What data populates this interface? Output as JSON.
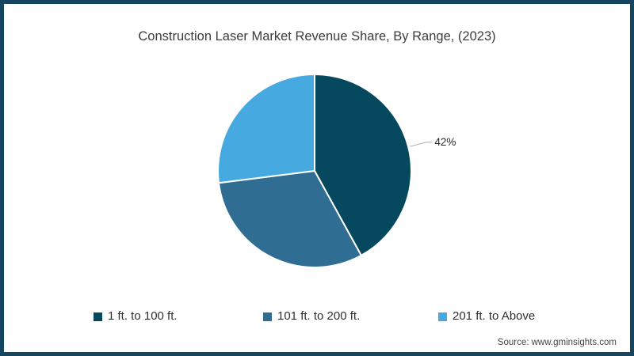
{
  "page": {
    "background": "#ffffff",
    "border_color": "#15455f"
  },
  "header": {
    "title": "Construction Laser Market Revenue Share, By Range, (2023)"
  },
  "chart_data": {
    "type": "pie",
    "title": "Construction Laser Market Revenue Share, By Range, (2023)",
    "unit": "%",
    "direction": "clockwise",
    "start_angle_deg": 0,
    "legend_position": "bottom",
    "separator_color": "#ffffff",
    "leader_line_color": "#a6a6a6",
    "data_label_color": "#262626",
    "slices": [
      {
        "label": "1 ft. to 100 ft.",
        "value": 42,
        "color": "#06495f",
        "data_label": "42%"
      },
      {
        "label": "101 ft. to 200 ft.",
        "value": 31,
        "color": "#2f6e92",
        "data_label": ""
      },
      {
        "label": "201 ft. to Above",
        "value": 27,
        "color": "#46aae1",
        "data_label": ""
      }
    ]
  },
  "footer": {
    "source": "Source: www.gminsights.com"
  }
}
